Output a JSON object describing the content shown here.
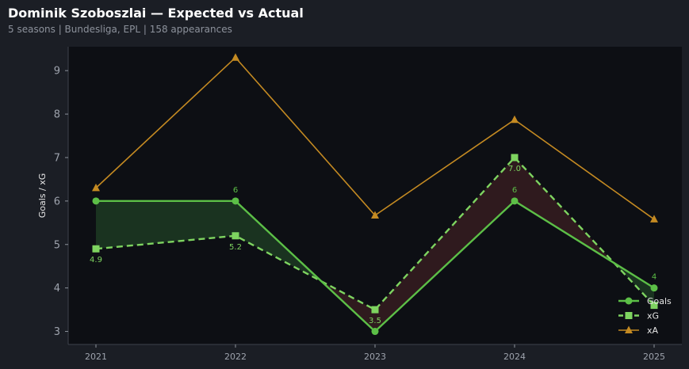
{
  "header": {
    "title": "Dominik Szoboszlai — Expected vs Actual",
    "subtitle": "5 seasons | Bundesliga, EPL | 158 appearances"
  },
  "chart_data": {
    "type": "line",
    "title": "Dominik Szoboszlai — Expected vs Actual",
    "subtitle": "5 seasons | Bundesliga, EPL | 158 appearances",
    "xlabel": "",
    "ylabel": "Goals / xG",
    "x": [
      "2021",
      "2022",
      "2023",
      "2024",
      "2025"
    ],
    "ylim": [
      2.7,
      9.55
    ],
    "yticks": [
      3,
      4,
      5,
      6,
      7,
      8,
      9
    ],
    "grid": false,
    "legend": "bottom-right",
    "series": [
      {
        "name": "Goals",
        "values": [
          6,
          6,
          3,
          6,
          4
        ],
        "color": "#5cbf47",
        "style": "solid",
        "marker": "circle",
        "point_labels": [
          "",
          "6",
          "",
          "6",
          "4"
        ]
      },
      {
        "name": "xG",
        "values": [
          4.9,
          5.2,
          3.5,
          7.0,
          3.6
        ],
        "color": "#7ed460",
        "style": "dashed",
        "marker": "square",
        "point_labels": [
          "4.9",
          "5.2",
          "3.5",
          "7.0",
          ""
        ]
      },
      {
        "name": "xA",
        "values": [
          6.3,
          9.3,
          5.67,
          7.87,
          5.58
        ],
        "color": "#c48a22",
        "style": "solid",
        "marker": "triangle"
      }
    ],
    "fill": {
      "over_color": "#1a3320",
      "under_color": "#2f1a1e"
    }
  }
}
